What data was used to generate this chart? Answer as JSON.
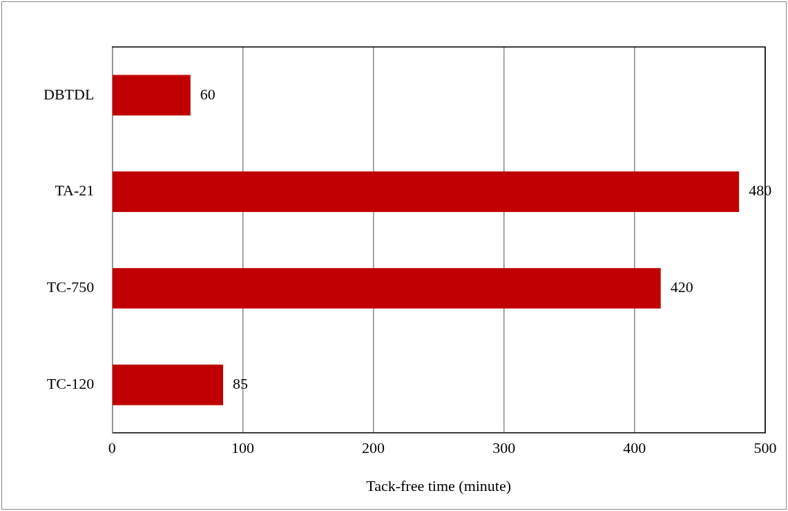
{
  "chart_data": {
    "type": "bar",
    "orientation": "horizontal",
    "xlabel": "Tack-free time (minute)",
    "categories": [
      "DBTDL",
      "TA-21",
      "TC-750",
      "TC-120"
    ],
    "values": [
      60,
      480,
      420,
      85
    ],
    "color": "#c00000",
    "xlim": [
      0,
      500
    ],
    "xticks": [
      0,
      100,
      200,
      300,
      400,
      500
    ],
    "grid": "x",
    "data_labels": true,
    "legend": false
  }
}
